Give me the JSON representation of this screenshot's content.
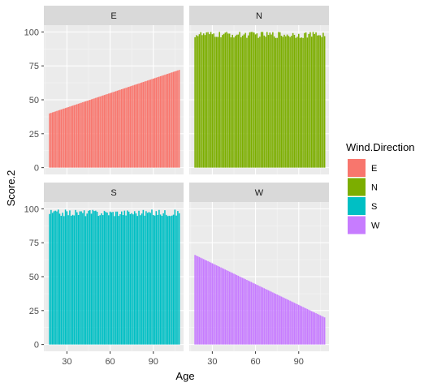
{
  "chart_data": {
    "type": "bar",
    "facet_by": "Wind.Direction",
    "facet_layout": "2x2",
    "xlabel": "Age",
    "ylabel": "Score.2",
    "x_ticks": [
      30,
      60,
      90
    ],
    "y_ticks": [
      0,
      25,
      50,
      75,
      100
    ],
    "xlim": [
      14,
      111
    ],
    "ylim": [
      -5,
      105
    ],
    "grid": true,
    "legend": {
      "title": "Wind.Direction",
      "placement": "right",
      "entries": [
        "E",
        "N",
        "S",
        "W"
      ]
    },
    "series": [
      {
        "name": "E",
        "color": "#F8766D",
        "pattern": "linear-increase",
        "x_range": [
          18,
          108
        ],
        "y_start": 40,
        "y_end": 72
      },
      {
        "name": "N",
        "color": "#7CAE00",
        "pattern": "near-constant",
        "x_range": [
          18,
          108
        ],
        "y_level": 98
      },
      {
        "name": "S",
        "color": "#00BFC4",
        "pattern": "near-constant",
        "x_range": [
          18,
          108
        ],
        "y_level": 97
      },
      {
        "name": "W",
        "color": "#C77CFF",
        "pattern": "linear-decrease",
        "x_range": [
          18,
          108
        ],
        "y_start": 66,
        "y_end": 20
      }
    ]
  }
}
